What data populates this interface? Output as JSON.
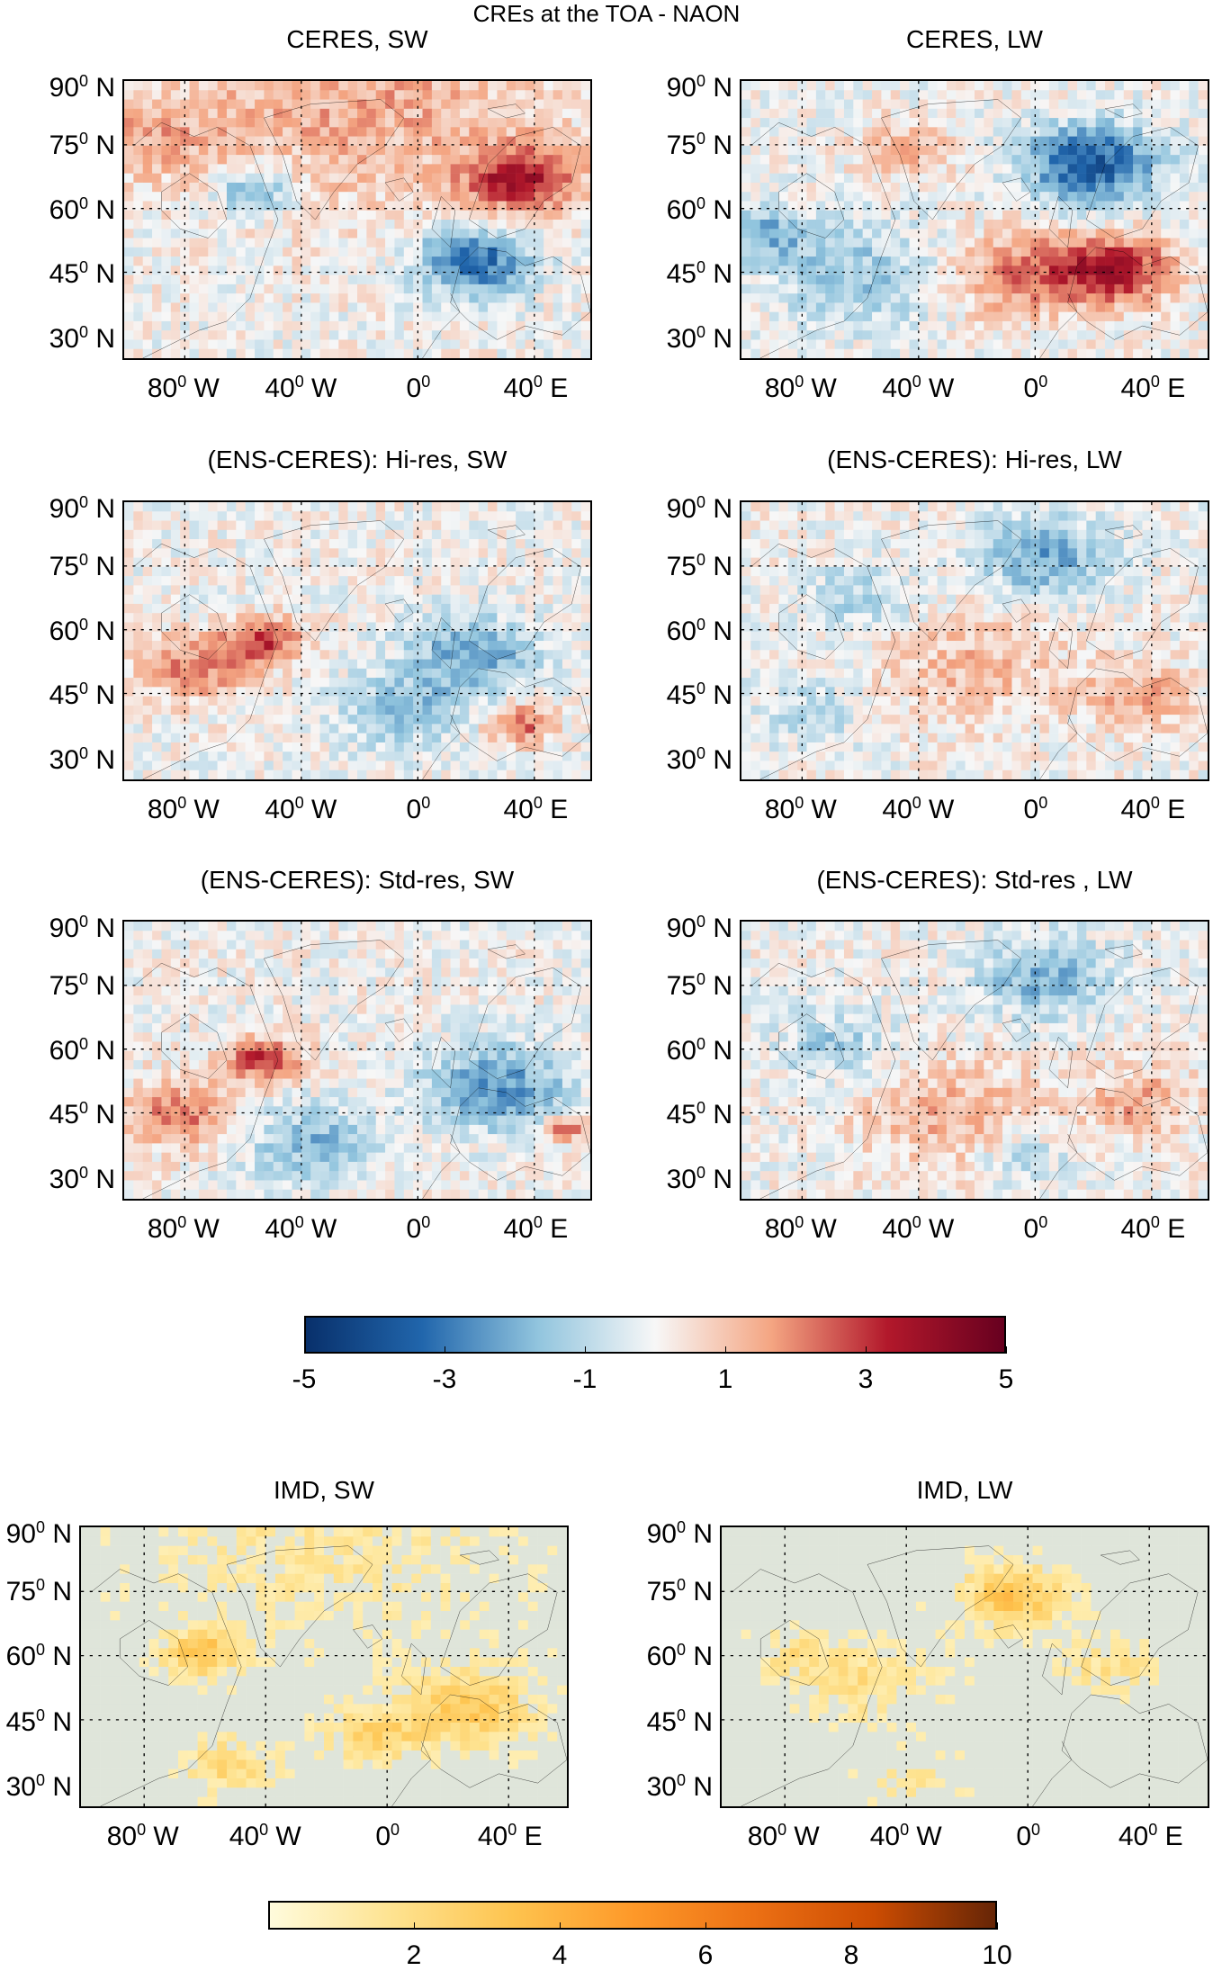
{
  "figure": {
    "suptitle": "CREs at the TOA - NAON"
  },
  "panels": [
    {
      "id": "ceres-sw",
      "title": "CERES, SW",
      "kind": "anomaly",
      "pattern": "ceres_sw"
    },
    {
      "id": "ceres-lw",
      "title": "CERES, LW",
      "kind": "anomaly",
      "pattern": "ceres_lw"
    },
    {
      "id": "hires-sw",
      "title": "(ENS-CERES): Hi-res, SW",
      "kind": "anomaly",
      "pattern": "hires_sw"
    },
    {
      "id": "hires-lw",
      "title": "(ENS-CERES): Hi-res, LW",
      "kind": "anomaly",
      "pattern": "hires_lw"
    },
    {
      "id": "stdres-sw",
      "title": "(ENS-CERES): Std-res, SW",
      "kind": "anomaly",
      "pattern": "stdres_sw"
    },
    {
      "id": "stdres-lw",
      "title": "(ENS-CERES): Std-res , LW",
      "kind": "anomaly",
      "pattern": "stdres_lw"
    },
    {
      "id": "imd-sw",
      "title": "IMD, SW",
      "kind": "imd",
      "pattern": "imd_sw"
    },
    {
      "id": "imd-lw",
      "title": "IMD, LW",
      "kind": "imd",
      "pattern": "imd_lw"
    }
  ],
  "axes": {
    "lat_labels": [
      "90",
      "75",
      "60",
      "45",
      "30"
    ],
    "lat_suffix": " N",
    "lon_labels": [
      "80",
      "40",
      "0",
      "40"
    ],
    "lon_suffixes": [
      " W",
      " W",
      "",
      " E"
    ],
    "degree_mark": "0",
    "grid": "dotted"
  },
  "colorbars": {
    "anomaly": {
      "ticks": [
        "-5",
        "-3",
        "-1",
        "1",
        "3",
        "5"
      ],
      "range": [
        -5,
        5
      ],
      "colormap": "blue-white-red",
      "colors": [
        "#08306b",
        "#2166ac",
        "#92c5de",
        "#f7f7f7",
        "#f4a582",
        "#b2182b",
        "#67001f"
      ]
    },
    "imd": {
      "ticks": [
        "2",
        "4",
        "6",
        "8",
        "10"
      ],
      "range": [
        0,
        10
      ],
      "colormap": "yellow-orange-brown",
      "colors": [
        "#fffbdc",
        "#fee391",
        "#fec44f",
        "#fe9929",
        "#ec7014",
        "#cc4c02",
        "#662506"
      ]
    }
  },
  "colors": {
    "coastline": "#000000",
    "grid": "#000000",
    "imd_background": "#dfe5da"
  }
}
